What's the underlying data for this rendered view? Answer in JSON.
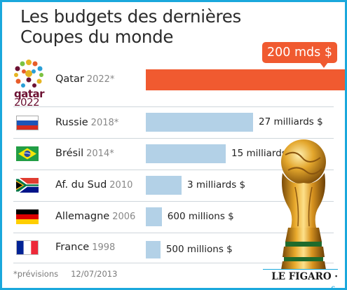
{
  "title_lines": [
    "Les budgets des dernières",
    "Coupes du monde"
  ],
  "chart_data": {
    "type": "bar",
    "orientation": "horizontal",
    "title": "Les budgets des dernières Coupes du monde",
    "rows": [
      {
        "country": "Qatar",
        "year": "2022*",
        "value_label": "200 mds $",
        "value_usd_bn": 200,
        "color": "#f05a30",
        "flag": "qatar-2022-logo"
      },
      {
        "country": "Russie",
        "year": "2018*",
        "value_label": "27 milliards $",
        "value_usd_bn": 27,
        "color": "#b3d1e7",
        "flag": "russia-flag-icon"
      },
      {
        "country": "Brésil",
        "year": "2014*",
        "value_label": "15 milliards $",
        "value_usd_bn": 15,
        "color": "#b3d1e7",
        "flag": "brazil-flag-icon"
      },
      {
        "country": "Af. du Sud",
        "year": "2010",
        "value_label": "3 milliards $",
        "value_usd_bn": 3,
        "color": "#b3d1e7",
        "flag": "south-africa-flag-icon"
      },
      {
        "country": "Allemagne",
        "year": "2006",
        "value_label": "600 millions $",
        "value_usd_bn": 0.6,
        "color": "#b3d1e7",
        "flag": "germany-flag-icon"
      },
      {
        "country": "France",
        "year": "1998",
        "value_label": "500 millions $",
        "value_usd_bn": 0.5,
        "color": "#b3d1e7",
        "flag": "france-flag-icon"
      }
    ]
  },
  "qatar_logo": {
    "word": "qatar",
    "year": "2022"
  },
  "footnote": {
    "note": "*prévisions",
    "date": "12/07/2013"
  },
  "logo": {
    "main": "LE FIGARO",
    "suffix": "fr"
  }
}
